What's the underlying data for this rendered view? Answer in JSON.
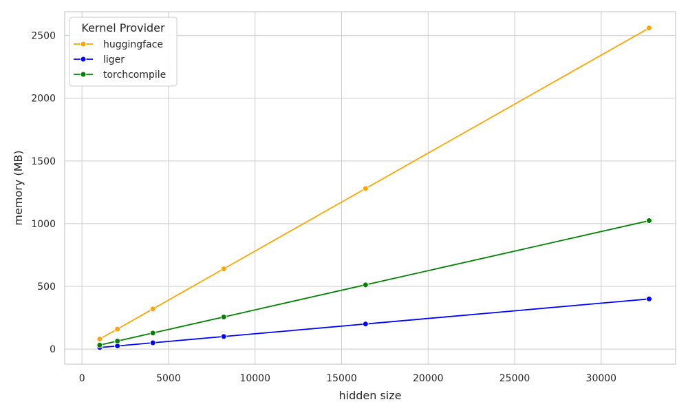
{
  "chart_data": {
    "type": "line",
    "title": "",
    "xlabel": "hidden size",
    "ylabel": "memory (MB)",
    "xlim": [
      -1000,
      34300
    ],
    "ylim": [
      -120,
      2690
    ],
    "xticks": [
      0,
      5000,
      10000,
      15000,
      20000,
      25000,
      30000
    ],
    "yticks": [
      0,
      500,
      1000,
      1500,
      2000,
      2500
    ],
    "grid": true,
    "legend": {
      "title": "Kernel Provider",
      "placement": "top-left"
    },
    "x": [
      1024,
      2048,
      4096,
      8192,
      16384,
      32768
    ],
    "series": [
      {
        "name": "huggingface",
        "color": "#ffa500",
        "values": [
          80,
          160,
          320,
          640,
          1280,
          2560
        ]
      },
      {
        "name": "liger",
        "color": "#0000ff",
        "values": [
          12.5,
          25,
          50,
          100,
          200,
          400
        ]
      },
      {
        "name": "torchcompile",
        "color": "#008000",
        "values": [
          32,
          64,
          128,
          256,
          512,
          1024
        ]
      }
    ]
  }
}
